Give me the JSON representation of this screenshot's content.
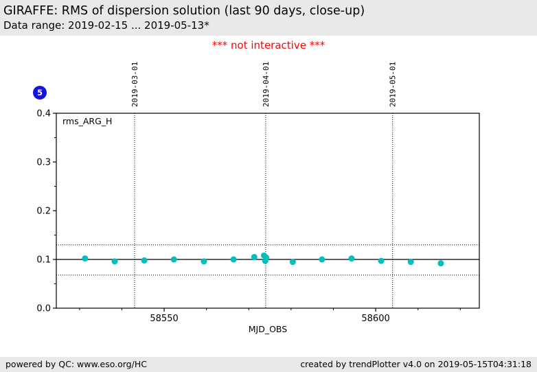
{
  "header": {
    "title": "GIRAFFE: RMS of dispersion solution (last 90 days, close-up)",
    "subtitle": "Data range: 2019-02-15 ... 2019-05-13*"
  },
  "notice": "*** not interactive ***",
  "badge": {
    "value": "5",
    "color": "#1414dd"
  },
  "footer": {
    "left": "powered by QC: www.eso.org/HC",
    "right": "created by trendPlotter v4.0 on 2019-05-15T04:31:18"
  },
  "chart_data": {
    "type": "scatter",
    "legend_label": "rms_ARG_H",
    "xlabel": "MJD_OBS",
    "xlim": [
      58524.5,
      58624.5
    ],
    "ylim": [
      0,
      0.4
    ],
    "x_major_ticks": [
      58550,
      58600
    ],
    "x_minor_tick_step": 10,
    "y_major_ticks": [
      0.0,
      0.1,
      0.2,
      0.3,
      0.4
    ],
    "y_minor_tick_step": 0.05,
    "top_date_gridlines": [
      {
        "mjd": 58543,
        "label": "2019-03-01"
      },
      {
        "mjd": 58574,
        "label": "2019-04-01"
      },
      {
        "mjd": 58604,
        "label": "2019-05-01"
      }
    ],
    "avg_line": 0.1,
    "threshold_lines": [
      0.13,
      0.068
    ],
    "point_color": "#00bfbf",
    "points": [
      [
        58531.3,
        0.102
      ],
      [
        58538.3,
        0.096
      ],
      [
        58545.3,
        0.098
      ],
      [
        58552.3,
        0.1
      ],
      [
        58559.4,
        0.096
      ],
      [
        58566.4,
        0.1
      ],
      [
        58571.3,
        0.105
      ],
      [
        58573.6,
        0.108
      ],
      [
        58574.1,
        0.104
      ],
      [
        58573.9,
        0.097
      ],
      [
        58580.4,
        0.095
      ],
      [
        58587.3,
        0.1
      ],
      [
        58594.3,
        0.102
      ],
      [
        58601.3,
        0.097
      ],
      [
        58608.3,
        0.095
      ],
      [
        58615.4,
        0.092
      ]
    ]
  }
}
